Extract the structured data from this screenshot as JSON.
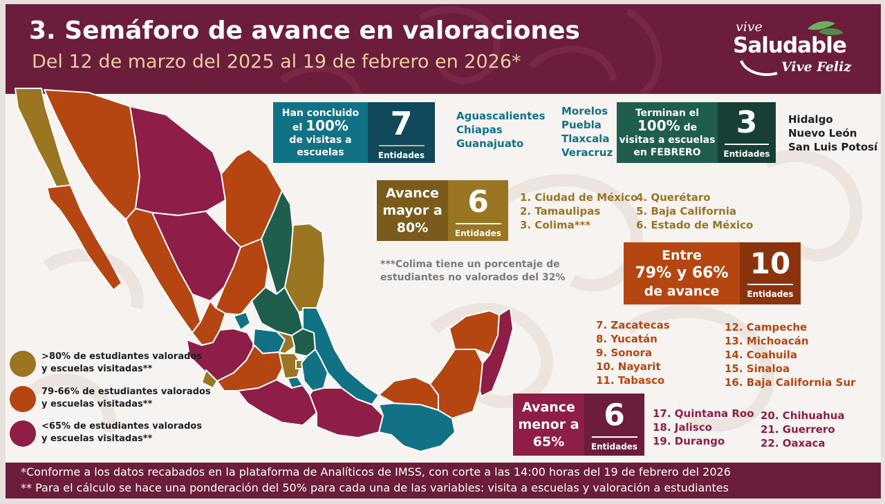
{
  "header": {
    "title": "3. Semáforo de avance en valoraciones",
    "subtitle": "Del 12 de marzo del 2025 al 19 de febrero en 2026*"
  },
  "logo": {
    "line1": "vive",
    "line2": "Saludable",
    "line3": "Vive Feliz"
  },
  "colors": {
    "header_bg": "#6b1d3b",
    "teal": "#127285",
    "dark_green": "#1f5d4d",
    "gold": "#9a7522",
    "orange": "#b54611",
    "crimson": "#8e1e47"
  },
  "cards": {
    "concluded": {
      "label_part1": "Han concluido",
      "label_part2": "el",
      "label_pct": "100%",
      "label_part3": "de visitas a",
      "label_part4": "escuelas",
      "number": "7",
      "unit": "Entidades",
      "states": [
        "Aguascalientes",
        "Chiapas",
        "Guanajuato"
      ]
    },
    "february": {
      "label_part1": "Terminan el",
      "label_pct": "100%",
      "label_part2": "de",
      "label_part3": "visitas a escuelas",
      "label_part4": "en FEBRERO",
      "number": "3",
      "unit": "Entidades",
      "states": [
        "Hidalgo",
        "Nuevo León",
        "San Luis Potosí"
      ]
    },
    "concluded_more_states": [
      "Morelos",
      "Puebla",
      "Tlaxcala",
      "Veracruz"
    ],
    "over80": {
      "label_line1": "Avance",
      "label_line2": "mayor a",
      "label_line3": "80%",
      "number": "6",
      "unit": "Entidades",
      "states_col1": [
        "1. Ciudad de México",
        "2. Tamaulipas",
        "3. Colima***"
      ],
      "states_col2": [
        "4. Querétaro",
        "5. Baja California",
        "6. Estado de México"
      ]
    },
    "between": {
      "label_line1": "Entre",
      "label_line2": "79% y 66%",
      "label_line3": "de avance",
      "number": "10",
      "unit": "Entidades",
      "states_col1": [
        "7. Zacatecas",
        "8. Yucatán",
        "9. Sonora",
        "10. Nayarit",
        "11. Tabasco"
      ],
      "states_col2": [
        "12. Campeche",
        "13. Michoacán",
        "14. Coahuila",
        "15. Sinaloa",
        "16. Baja California Sur"
      ]
    },
    "under65": {
      "label_line1": "Avance",
      "label_line2": "menor a",
      "label_line3": "65%",
      "number": "6",
      "unit": "Entidades",
      "states_col1": [
        "17. Quintana Roo",
        "18. Jalisco",
        "19. Durango"
      ],
      "states_col2": [
        "20. Chihuahua",
        "21. Guerrero",
        "22. Oaxaca"
      ]
    }
  },
  "note": {
    "line1": "***Colima tiene un porcentaje de",
    "line2": "estudiantes no valorados del 32%"
  },
  "legend": [
    {
      "line1": ">80% de estudiantes valorados",
      "line2": "y escuelas visitadas**",
      "color": "#9a7522"
    },
    {
      "line1": "79-66% de estudiantes valorados",
      "line2": "y escuelas visitadas**",
      "color": "#b54611"
    },
    {
      "line1": "<65% de estudiantes valorados",
      "line2": "y escuelas visitadas**",
      "color": "#8e1e47"
    }
  ],
  "footer": {
    "line1": "*Conforme a los datos recabados en la plataforma de Analíticos de IMSS, con corte a las 14:00 horas del 19 de febrero del 2026",
    "line2": "** Para el cálculo se hace una ponderación del 50% para cada una de las variables: visita a escuelas y valoración a estudiantes"
  }
}
